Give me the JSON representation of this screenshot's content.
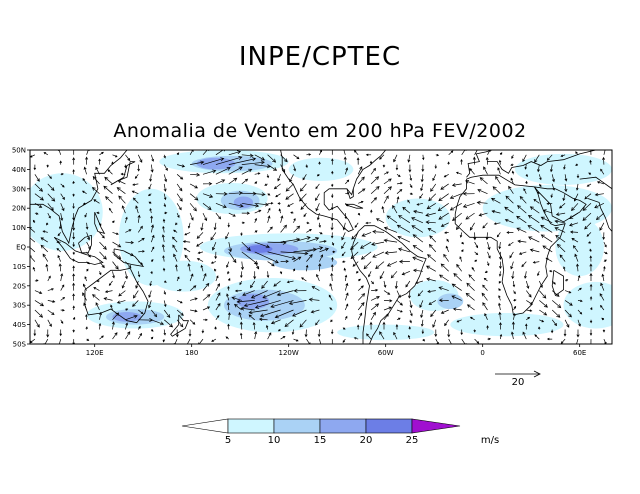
{
  "header": {
    "org_title": "INPE/CPTEC",
    "map_title": "Anomalia de Vento em 200 hPa FEV/2002"
  },
  "map": {
    "lat_labels": [
      "50N",
      "40N",
      "30N",
      "20N",
      "10N",
      "EQ",
      "10S",
      "20S",
      "30S",
      "40S",
      "50S"
    ],
    "lon_labels": [
      "120E",
      "180",
      "120W",
      "60W",
      "0",
      "60E"
    ],
    "colors": {
      "level_0": "#ffffff",
      "level_5": "#cff6ff",
      "level_10": "#aad2f5",
      "level_15": "#8ea8f0",
      "level_20": "#6c7ee6",
      "level_25": "#5a4ce6",
      "level_over": "#a010d0",
      "coast": "#000000",
      "arrow": "#000000"
    }
  },
  "reference_vector": {
    "label": "20"
  },
  "colorbar": {
    "levels": [
      "5",
      "10",
      "15",
      "20",
      "25"
    ],
    "units": "m/s"
  }
}
